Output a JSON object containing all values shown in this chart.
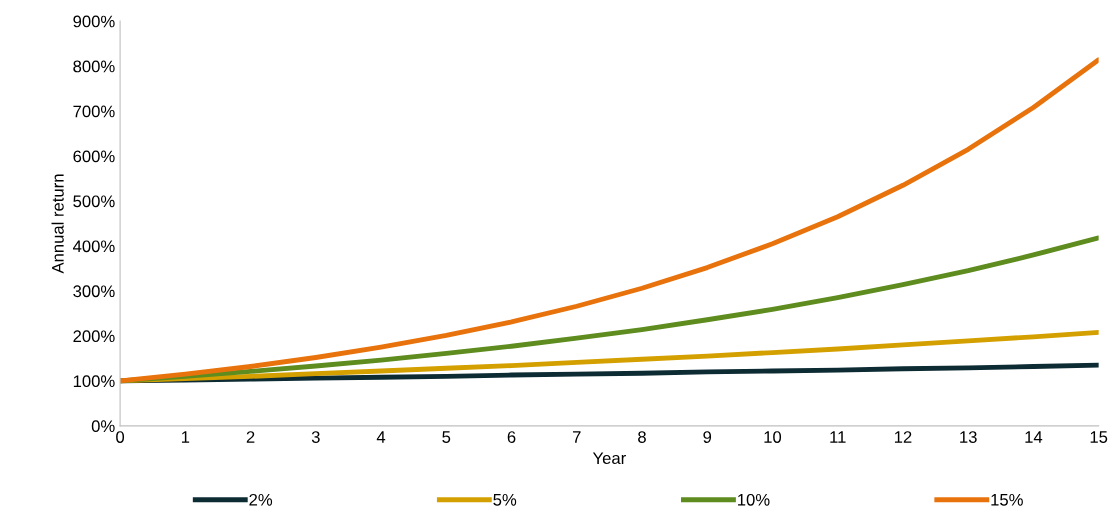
{
  "chart_data": {
    "type": "line",
    "xlabel": "Year",
    "ylabel": "Annual return",
    "x": [
      0,
      1,
      2,
      3,
      4,
      5,
      6,
      7,
      8,
      9,
      10,
      11,
      12,
      13,
      14,
      15
    ],
    "series": [
      {
        "name": "2%",
        "color": "#0d2b33",
        "values": [
          100,
          102,
          104,
          106,
          108,
          110,
          113,
          115,
          117,
          120,
          122,
          124,
          127,
          129,
          132,
          135
        ]
      },
      {
        "name": "5%",
        "color": "#d4a000",
        "values": [
          100,
          105,
          110,
          116,
          122,
          128,
          134,
          141,
          148,
          155,
          163,
          171,
          180,
          189,
          198,
          208
        ]
      },
      {
        "name": "10%",
        "color": "#5e8c1f",
        "values": [
          100,
          110,
          121,
          133,
          146,
          161,
          177,
          195,
          214,
          236,
          259,
          285,
          314,
          345,
          380,
          418
        ]
      },
      {
        "name": "15%",
        "color": "#e8730c",
        "values": [
          100,
          115,
          132,
          152,
          175,
          201,
          231,
          266,
          306,
          352,
          405,
          465,
          535,
          615,
          708,
          814
        ]
      }
    ],
    "xlim": [
      0,
      15
    ],
    "xticks": [
      0,
      1,
      2,
      3,
      4,
      5,
      6,
      7,
      8,
      9,
      10,
      11,
      12,
      13,
      14,
      15
    ],
    "ylim": [
      0,
      900
    ],
    "yticks": [
      {
        "value": 0,
        "label": "0%"
      },
      {
        "value": 100,
        "label": "100%"
      },
      {
        "value": 200,
        "label": "200%"
      },
      {
        "value": 300,
        "label": "300%"
      },
      {
        "value": 400,
        "label": "400%"
      },
      {
        "value": 500,
        "label": "500%"
      },
      {
        "value": 600,
        "label": "600%"
      },
      {
        "value": 700,
        "label": "700%"
      },
      {
        "value": 800,
        "label": "800%"
      },
      {
        "value": 900,
        "label": "900%"
      }
    ],
    "grid": false,
    "legend": "bottom",
    "marker": "none",
    "line_style": "solid"
  }
}
